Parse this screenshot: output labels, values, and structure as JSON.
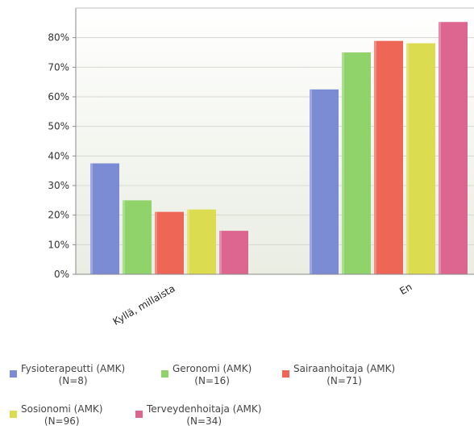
{
  "chart_data": {
    "type": "bar",
    "categories": [
      "Kyllä, millaista",
      "En"
    ],
    "series": [
      {
        "name": "Fysioterapeutti (AMK)",
        "label": "Fysioterapeutti (AMK)",
        "n": "(N=8)",
        "color": "#7b8bd4",
        "values": [
          37.5,
          62.5
        ]
      },
      {
        "name": "Geronomi (AMK)",
        "label": "Geronomi (AMK)",
        "n": "(N=16)",
        "color": "#8fd36a",
        "values": [
          25,
          75
        ]
      },
      {
        "name": "Sairaanhoitaja (AMK)",
        "label": "Sairaanhoitaja (AMK)",
        "n": "(N=71)",
        "color": "#ee6655",
        "values": [
          21.1,
          78.9
        ]
      },
      {
        "name": "Sosionomi (AMK)",
        "label": "Sosionomi (AMK)",
        "n": "(N=96)",
        "color": "#dcdc50",
        "values": [
          21.9,
          78.1
        ]
      },
      {
        "name": "Terveydenhoitaja (AMK)",
        "label": "Terveydenhoitaja (AMK)",
        "n": "(N=34)",
        "color": "#dd6690",
        "values": [
          14.7,
          85.3
        ]
      }
    ],
    "y_ticks": [
      "0%",
      "10%",
      "20%",
      "30%",
      "40%",
      "50%",
      "60%",
      "70%",
      "80%"
    ],
    "ylim": [
      0,
      90
    ],
    "grid": true,
    "legend": "bottom"
  }
}
